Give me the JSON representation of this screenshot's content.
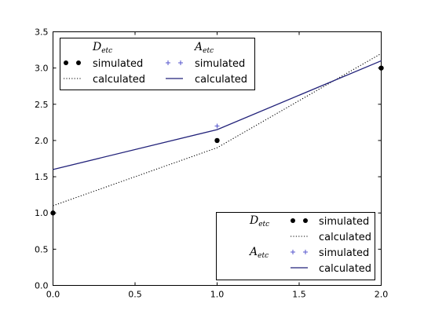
{
  "chart_data": {
    "type": "line",
    "xlim": [
      0.0,
      2.0
    ],
    "ylim": [
      0.0,
      3.5
    ],
    "x_ticks": [
      "0.0",
      "0.5",
      "1.0",
      "1.5",
      "2.0"
    ],
    "y_ticks": [
      "0.0",
      "0.5",
      "1.0",
      "1.5",
      "2.0",
      "2.5",
      "3.0",
      "3.5"
    ],
    "x_tick_values": [
      0.0,
      0.5,
      1.0,
      1.5,
      2.0
    ],
    "y_tick_values": [
      0.0,
      0.5,
      1.0,
      1.5,
      2.0,
      2.5,
      3.0,
      3.5
    ],
    "grid": false,
    "series": [
      {
        "group": "D_etc",
        "name": "simulated",
        "style": "dots",
        "color": "#000000",
        "x": [
          0,
          1,
          2
        ],
        "y": [
          1.0,
          2.0,
          3.0
        ]
      },
      {
        "group": "D_etc",
        "name": "calculated",
        "style": "dotted-line",
        "color": "#000000",
        "x": [
          0,
          1,
          2
        ],
        "y": [
          1.1,
          1.9,
          3.2
        ]
      },
      {
        "group": "A_etc",
        "name": "simulated",
        "style": "plus",
        "color": "#5555cc",
        "x": [
          1
        ],
        "y": [
          2.2
        ]
      },
      {
        "group": "A_etc",
        "name": "calculated",
        "style": "solid-line",
        "color": "#22227a",
        "x": [
          0,
          1,
          2
        ],
        "y": [
          1.6,
          2.15,
          3.1
        ]
      }
    ],
    "legends": [
      {
        "position": "upper-left",
        "groups": [
          {
            "symbol": "D",
            "subscript": "etc",
            "entries": [
              "simulated",
              "calculated"
            ]
          },
          {
            "symbol": "A",
            "subscript": "etc",
            "entries": [
              "simulated",
              "calculated"
            ]
          }
        ]
      },
      {
        "position": "lower-right",
        "groups": [
          {
            "symbol": "D",
            "subscript": "etc",
            "entries": [
              "simulated",
              "calculated"
            ]
          },
          {
            "symbol": "A",
            "subscript": "etc",
            "entries": [
              "simulated",
              "calculated"
            ]
          }
        ]
      }
    ]
  }
}
